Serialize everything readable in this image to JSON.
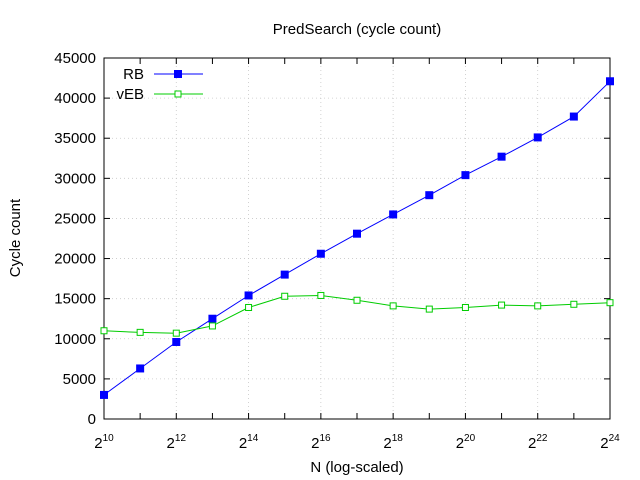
{
  "chart_data": {
    "type": "line",
    "title": "PredSearch (cycle count)",
    "xlabel": "N (log-scaled)",
    "ylabel": "Cycle count",
    "x_scale": "log2",
    "x_tick_base": "2",
    "x_tick_exponents": [
      "10",
      "12",
      "14",
      "16",
      "18",
      "20",
      "22",
      "24"
    ],
    "xlim": [
      1024,
      16777216
    ],
    "ylim": [
      0,
      45000
    ],
    "y_ticks": [
      "0",
      "5000",
      "10000",
      "15000",
      "20000",
      "25000",
      "30000",
      "35000",
      "40000",
      "45000"
    ],
    "grid": true,
    "legend_position": "top-left",
    "x": [
      1024,
      2048,
      4096,
      8192,
      16384,
      32768,
      65536,
      131072,
      262144,
      524288,
      1048576,
      2097152,
      4194304,
      8388608,
      16777216
    ],
    "series": [
      {
        "name": "RB",
        "color": "#0000ff",
        "marker": "filled-square",
        "values": [
          3000,
          6300,
          9600,
          12500,
          15400,
          18000,
          20600,
          23100,
          25500,
          27900,
          30400,
          32700,
          35100,
          37700,
          42100
        ]
      },
      {
        "name": "vEB",
        "color": "#00cc00",
        "marker": "open-square",
        "values": [
          11000,
          10800,
          10700,
          11600,
          13900,
          15300,
          15400,
          14800,
          14100,
          13700,
          13900,
          14200,
          14100,
          14300,
          14500
        ]
      }
    ]
  }
}
